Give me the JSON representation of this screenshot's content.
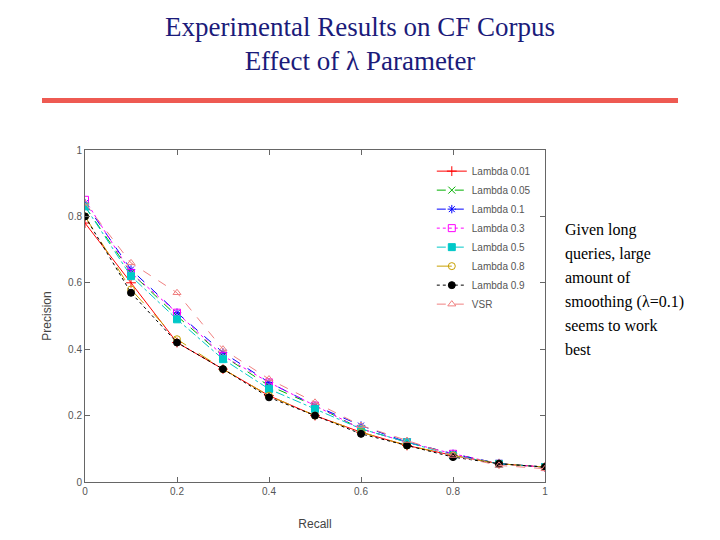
{
  "header": {
    "title": [
      "Experimental Results on CF Corpus",
      "Effect of λ Parameter"
    ]
  },
  "note": "Given long queries, large amount of smoothing (λ=0.1) seems to work best",
  "chart_data": {
    "type": "line",
    "x_label": "Recall",
    "y_label": "Precision",
    "x": [
      0,
      0.1,
      0.2,
      0.3,
      0.4,
      0.5,
      0.6,
      0.7,
      0.8,
      0.9,
      1
    ],
    "xlim": [
      0,
      1
    ],
    "xticks": [
      0,
      0.2,
      0.4,
      0.6,
      0.8,
      1
    ],
    "ylim": [
      0,
      1
    ],
    "yticks": [
      0,
      0.2,
      0.4,
      0.6,
      0.8,
      1
    ],
    "grid": false,
    "legend": "top-right",
    "series": [
      {
        "name": "Lambda 0.01",
        "color": "#ff0000",
        "marker": "cross-thin-open",
        "line_style": "solid",
        "values": [
          0.78,
          0.6,
          0.42,
          0.34,
          0.26,
          0.2,
          0.15,
          0.11,
          0.08,
          0.055,
          0.045
        ]
      },
      {
        "name": "Lambda 0.05",
        "color": "#00b000",
        "marker": "x-thin-open",
        "line_style": "dash",
        "values": [
          0.83,
          0.63,
          0.5,
          0.38,
          0.29,
          0.23,
          0.16,
          0.12,
          0.085,
          0.055,
          0.045
        ]
      },
      {
        "name": "Lambda 0.1",
        "color": "#0000ff",
        "marker": "asterisk-open",
        "line_style": "dash",
        "values": [
          0.84,
          0.64,
          0.51,
          0.39,
          0.3,
          0.23,
          0.17,
          0.12,
          0.085,
          0.055,
          0.045
        ]
      },
      {
        "name": "Lambda 0.3",
        "color": "#ff00ff",
        "marker": "square-open",
        "line_style": "dot",
        "values": [
          0.85,
          0.63,
          0.51,
          0.38,
          0.3,
          0.23,
          0.16,
          0.12,
          0.085,
          0.055,
          0.045
        ]
      },
      {
        "name": "Lambda 0.5",
        "color": "#00c8c8",
        "marker": "square",
        "line_style": "dashdot",
        "values": [
          0.83,
          0.62,
          0.49,
          0.37,
          0.28,
          0.22,
          0.16,
          0.12,
          0.08,
          0.055,
          0.045
        ]
      },
      {
        "name": "Lambda 0.8",
        "color": "#c8a000",
        "marker": "circle-open",
        "line_style": "longdash",
        "values": [
          0.8,
          0.58,
          0.43,
          0.34,
          0.26,
          0.2,
          0.15,
          0.11,
          0.08,
          0.055,
          0.045
        ]
      },
      {
        "name": "Lambda 0.9",
        "color": "#000000",
        "marker": "circle",
        "line_style": "dot",
        "values": [
          0.8,
          0.57,
          0.42,
          0.34,
          0.255,
          0.2,
          0.145,
          0.11,
          0.075,
          0.055,
          0.045
        ]
      },
      {
        "name": "VSR",
        "color": "#f08080",
        "marker": "triangle-up-open",
        "line_style": "dash",
        "values": [
          0.84,
          0.66,
          0.57,
          0.4,
          0.31,
          0.24,
          0.17,
          0.125,
          0.08,
          0.05,
          0.04
        ]
      }
    ]
  }
}
